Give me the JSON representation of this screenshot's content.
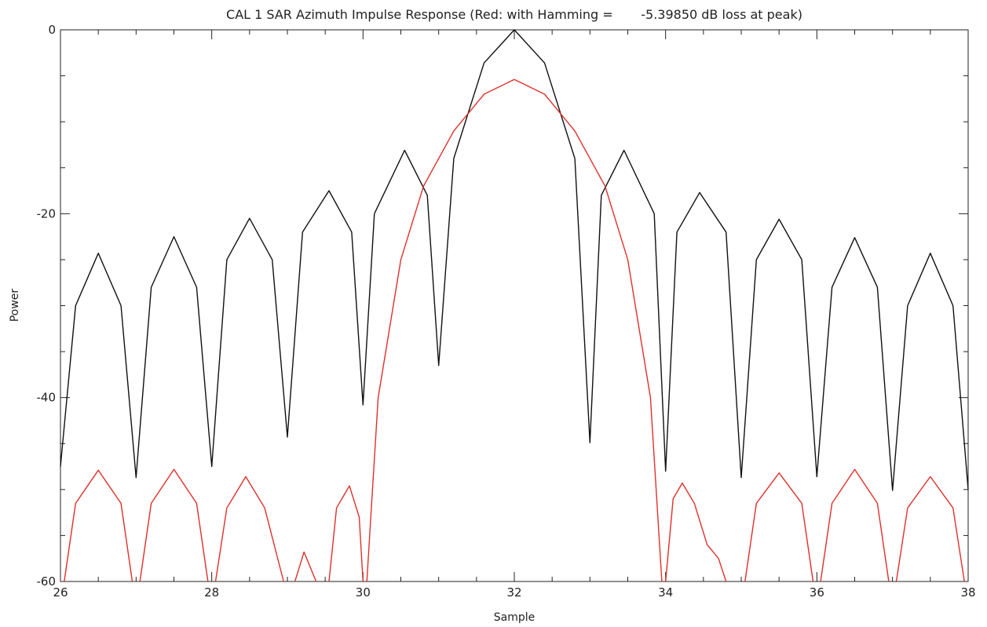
{
  "chart_data": {
    "type": "line",
    "title": "CAL 1 SAR Azimuth Impulse Response (Red: with Hamming =       -5.39850 dB loss at peak)",
    "xlabel": "Sample",
    "ylabel": "Power",
    "xlim": [
      26,
      38
    ],
    "ylim": [
      -60,
      0
    ],
    "x_ticks": [
      26,
      28,
      30,
      32,
      34,
      36,
      38
    ],
    "x_tick_labels": [
      "26",
      "28",
      "30",
      "32",
      "34",
      "36",
      "38"
    ],
    "y_ticks": [
      0,
      -20,
      -40,
      -60
    ],
    "y_tick_labels": [
      "0",
      "-20",
      "-40",
      "-60"
    ],
    "x_minor_step": 0.5,
    "y_minor_step": 5,
    "grid": false,
    "legend": "none",
    "series": [
      {
        "color": "#111111",
        "points": [
          [
            26.0,
            -47.5
          ],
          [
            26.2,
            -30.0
          ],
          [
            26.5,
            -24.3
          ],
          [
            26.8,
            -30.0
          ],
          [
            27.0,
            -48.7
          ],
          [
            27.2,
            -28.0
          ],
          [
            27.5,
            -22.5
          ],
          [
            27.8,
            -28.0
          ],
          [
            28.0,
            -47.5
          ],
          [
            28.2,
            -25.0
          ],
          [
            28.5,
            -20.5
          ],
          [
            28.8,
            -25.0
          ],
          [
            29.0,
            -44.3
          ],
          [
            29.2,
            -22.0
          ],
          [
            29.55,
            -17.5
          ],
          [
            29.85,
            -22.0
          ],
          [
            30.0,
            -40.8
          ],
          [
            30.15,
            -20.0
          ],
          [
            30.55,
            -13.1
          ],
          [
            30.85,
            -18.0
          ],
          [
            31.0,
            -36.5
          ],
          [
            31.2,
            -14.0
          ],
          [
            31.6,
            -3.6
          ],
          [
            32.0,
            0.0
          ],
          [
            32.4,
            -3.6
          ],
          [
            32.8,
            -14.0
          ],
          [
            33.0,
            -44.9
          ],
          [
            33.15,
            -18.0
          ],
          [
            33.45,
            -13.1
          ],
          [
            33.85,
            -20.0
          ],
          [
            34.0,
            -48.0
          ],
          [
            34.15,
            -22.0
          ],
          [
            34.45,
            -17.7
          ],
          [
            34.8,
            -22.0
          ],
          [
            35.0,
            -48.7
          ],
          [
            35.2,
            -25.0
          ],
          [
            35.5,
            -20.6
          ],
          [
            35.8,
            -25.0
          ],
          [
            36.0,
            -48.6
          ],
          [
            36.2,
            -28.0
          ],
          [
            36.5,
            -22.6
          ],
          [
            36.8,
            -28.0
          ],
          [
            37.0,
            -50.1
          ],
          [
            37.2,
            -30.0
          ],
          [
            37.5,
            -24.3
          ],
          [
            37.8,
            -30.0
          ],
          [
            38.0,
            -50.0
          ]
        ]
      },
      {
        "color": "#e0302a",
        "segments": [
          [
            [
              26.05,
              -60.0
            ],
            [
              26.2,
              -51.5
            ],
            [
              26.5,
              -47.9
            ],
            [
              26.8,
              -51.5
            ],
            [
              26.95,
              -60.0
            ]
          ],
          [
            [
              27.05,
              -60.0
            ],
            [
              27.2,
              -51.5
            ],
            [
              27.5,
              -47.8
            ],
            [
              27.8,
              -51.5
            ],
            [
              27.95,
              -60.0
            ]
          ],
          [
            [
              28.05,
              -60.0
            ],
            [
              28.2,
              -52.0
            ],
            [
              28.45,
              -48.6
            ],
            [
              28.7,
              -52.0
            ],
            [
              28.95,
              -60.0
            ]
          ],
          [
            [
              29.1,
              -60.0
            ],
            [
              29.22,
              -56.8
            ],
            [
              29.38,
              -60.0
            ]
          ],
          [
            [
              29.55,
              -60.0
            ],
            [
              29.65,
              -52.0
            ],
            [
              29.82,
              -49.6
            ],
            [
              29.95,
              -53.0
            ],
            [
              30.0,
              -60.0
            ]
          ],
          [
            [
              30.05,
              -60.0
            ],
            [
              30.2,
              -40.0
            ],
            [
              30.5,
              -25.0
            ],
            [
              30.8,
              -17.0
            ],
            [
              31.2,
              -11.0
            ],
            [
              31.6,
              -7.0
            ],
            [
              32.0,
              -5.4
            ],
            [
              32.4,
              -7.0
            ],
            [
              32.8,
              -11.0
            ],
            [
              33.2,
              -17.0
            ],
            [
              33.5,
              -25.0
            ],
            [
              33.8,
              -40.0
            ],
            [
              33.95,
              -60.0
            ]
          ],
          [
            [
              34.0,
              -60.0
            ],
            [
              34.1,
              -51.0
            ],
            [
              34.22,
              -49.3
            ],
            [
              34.38,
              -51.5
            ],
            [
              34.55,
              -56.0
            ],
            [
              34.7,
              -57.5
            ],
            [
              34.8,
              -60.0
            ]
          ],
          [
            [
              35.05,
              -60.0
            ],
            [
              35.2,
              -51.5
            ],
            [
              35.5,
              -48.2
            ],
            [
              35.8,
              -51.5
            ],
            [
              35.95,
              -60.0
            ]
          ],
          [
            [
              36.05,
              -60.0
            ],
            [
              36.2,
              -51.5
            ],
            [
              36.5,
              -47.8
            ],
            [
              36.8,
              -51.5
            ],
            [
              36.95,
              -60.0
            ]
          ],
          [
            [
              37.05,
              -60.0
            ],
            [
              37.2,
              -52.0
            ],
            [
              37.5,
              -48.6
            ],
            [
              37.8,
              -52.0
            ],
            [
              37.95,
              -60.0
            ]
          ]
        ]
      }
    ]
  }
}
